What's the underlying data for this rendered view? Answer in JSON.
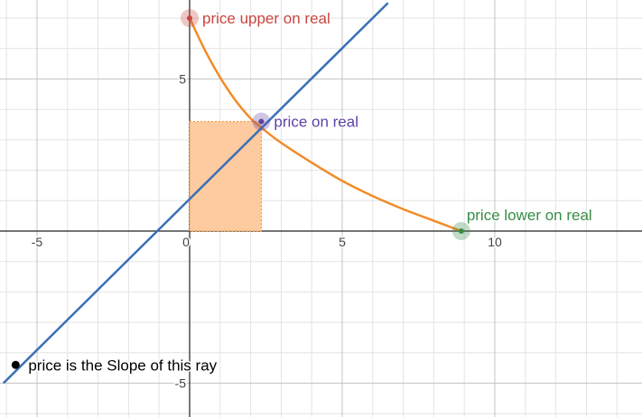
{
  "chart_data": {
    "type": "line",
    "xlim": [
      -6.1,
      14.8
    ],
    "ylim": [
      -6.2,
      7.5
    ],
    "grid": true,
    "x_ticks": [
      {
        "value": -5,
        "label": "-5"
      },
      {
        "value": 0,
        "label": "0"
      },
      {
        "value": 5,
        "label": "5"
      },
      {
        "value": 10,
        "label": "10"
      }
    ],
    "y_ticks": [
      {
        "value": 5,
        "label": "5"
      },
      {
        "value": -5,
        "label": "-5"
      }
    ],
    "curve": {
      "color": "#f28c28",
      "points": [
        [
          0,
          7
        ],
        [
          0.5,
          5.95
        ],
        [
          1,
          5.05
        ],
        [
          1.5,
          4.3
        ],
        [
          2,
          3.7
        ],
        [
          2.35,
          3.4
        ],
        [
          3,
          2.9
        ],
        [
          4,
          2.25
        ],
        [
          5,
          1.65
        ],
        [
          6,
          1.15
        ],
        [
          7,
          0.72
        ],
        [
          8,
          0.34
        ],
        [
          8.9,
          0
        ]
      ]
    },
    "ray": {
      "color": "#3b6fb6",
      "points": [
        [
          -6.1,
          -5
        ],
        [
          6.5,
          7.5
        ]
      ],
      "anchor": {
        "x": -5.7,
        "y": -4.4,
        "color": "#000000",
        "label": "price is the Slope of this ray"
      }
    },
    "rectangle": {
      "x0": 0,
      "x1": 2.35,
      "y0": 0,
      "y1": 3.6,
      "fill": "#fdc89a",
      "stroke": "#f28c28"
    },
    "points": [
      {
        "name": "price upper",
        "x": 0,
        "y": 7,
        "label": "price upper on real",
        "color": "#c74440"
      },
      {
        "name": "price",
        "x": 2.35,
        "y": 3.6,
        "label": "price on real",
        "color": "#6042a6"
      },
      {
        "name": "price lower",
        "x": 8.9,
        "y": 0,
        "label": "price lower on real",
        "color": "#388c46"
      }
    ]
  }
}
